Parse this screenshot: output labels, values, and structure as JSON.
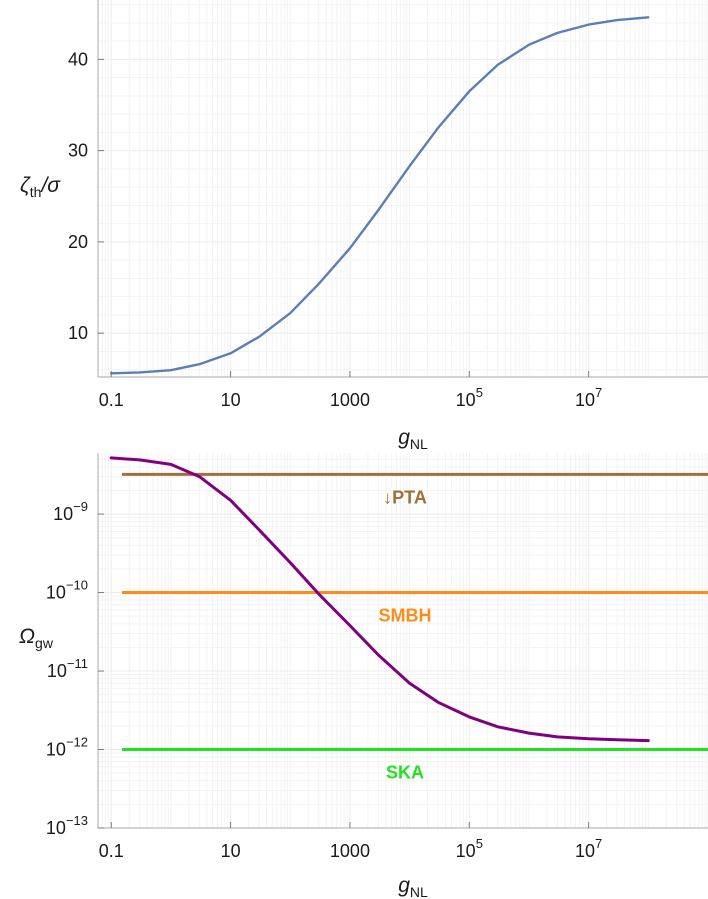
{
  "chart_data": [
    {
      "type": "line",
      "xscale": "log",
      "yscale": "linear",
      "xlabel": {
        "main": "g",
        "sub": "NL"
      },
      "ylabel": {
        "main": "ζ",
        "sub": "th",
        "suffix": "/σ"
      },
      "xlim": [
        0.06,
        1000000000
      ],
      "ylim": [
        5.2,
        46.5
      ],
      "x_ticks": [
        {
          "value": 0.1,
          "mantissa": "0.1",
          "exp": ""
        },
        {
          "value": 10,
          "mantissa": "10",
          "exp": ""
        },
        {
          "value": 1000,
          "mantissa": "1000",
          "exp": ""
        },
        {
          "value": 100000,
          "mantissa": "10",
          "exp": "5"
        },
        {
          "value": 10000000,
          "mantissa": "10",
          "exp": "7"
        }
      ],
      "y_ticks": [
        {
          "value": 10,
          "label": "10"
        },
        {
          "value": 20,
          "label": "20"
        },
        {
          "value": 30,
          "label": "30"
        },
        {
          "value": 40,
          "label": "40"
        }
      ],
      "grid": true,
      "series": [
        {
          "color": "#5b7fb5",
          "points": [
            [
              0.1,
              5.6
            ],
            [
              0.3,
              5.7
            ],
            [
              1,
              5.95
            ],
            [
              3,
              6.6
            ],
            [
              10,
              7.8
            ],
            [
              30,
              9.6
            ],
            [
              100,
              12.2
            ],
            [
              300,
              15.4
            ],
            [
              1000,
              19.3
            ],
            [
              3000,
              23.5
            ],
            [
              10000,
              28.3
            ],
            [
              30000,
              32.5
            ],
            [
              100000,
              36.5
            ],
            [
              300000,
              39.4
            ],
            [
              1000000,
              41.6
            ],
            [
              3000000,
              42.9
            ],
            [
              10000000,
              43.8
            ],
            [
              30000000,
              44.3
            ],
            [
              100000000,
              44.6
            ]
          ]
        }
      ]
    },
    {
      "type": "line",
      "xscale": "log",
      "yscale": "log",
      "xlabel": {
        "main": "g",
        "sub": "NL"
      },
      "ylabel": {
        "main": "Ω",
        "sub": "gw",
        "suffix": ""
      },
      "xlim": [
        0.06,
        1000000000
      ],
      "ylim": [
        1e-13,
        6e-09
      ],
      "x_ticks": [
        {
          "value": 0.1,
          "mantissa": "0.1",
          "exp": ""
        },
        {
          "value": 10,
          "mantissa": "10",
          "exp": ""
        },
        {
          "value": 1000,
          "mantissa": "1000",
          "exp": ""
        },
        {
          "value": 100000,
          "mantissa": "10",
          "exp": "5"
        },
        {
          "value": 10000000,
          "mantissa": "10",
          "exp": "7"
        }
      ],
      "y_ticks": [
        {
          "value": 1e-13,
          "mantissa": "10",
          "exp": "−13"
        },
        {
          "value": 1e-12,
          "mantissa": "10",
          "exp": "−12"
        },
        {
          "value": 1e-11,
          "mantissa": "10",
          "exp": "−11"
        },
        {
          "value": 1e-10,
          "mantissa": "10",
          "exp": "−10"
        },
        {
          "value": 1e-09,
          "mantissa": "10",
          "exp": "−9"
        }
      ],
      "grid": true,
      "series": [
        {
          "color": "#800080",
          "points": [
            [
              0.1,
              5.2e-09
            ],
            [
              0.3,
              4.9e-09
            ],
            [
              1,
              4.3e-09
            ],
            [
              3,
              3e-09
            ],
            [
              10,
              1.5e-09
            ],
            [
              30,
              6.3e-10
            ],
            [
              100,
              2.4e-10
            ],
            [
              300,
              9.6e-11
            ],
            [
              1000,
              3.8e-11
            ],
            [
              3000,
              1.6e-11
            ],
            [
              10000,
              7e-12
            ],
            [
              30000,
              4e-12
            ],
            [
              100000,
              2.6e-12
            ],
            [
              300000,
              1.95e-12
            ],
            [
              1000000,
              1.62e-12
            ],
            [
              3000000,
              1.45e-12
            ],
            [
              10000000,
              1.37e-12
            ],
            [
              30000000,
              1.33e-12
            ],
            [
              100000000,
              1.3e-12
            ]
          ]
        }
      ],
      "hlines": [
        {
          "label": "↓PTA",
          "y": 3.2e-09,
          "color": "#a0703a"
        },
        {
          "label": "SMBH",
          "y": 1e-10,
          "color": "#ff8c1a"
        },
        {
          "label": "SKA",
          "y": 1e-12,
          "color": "#22e022"
        }
      ]
    }
  ]
}
